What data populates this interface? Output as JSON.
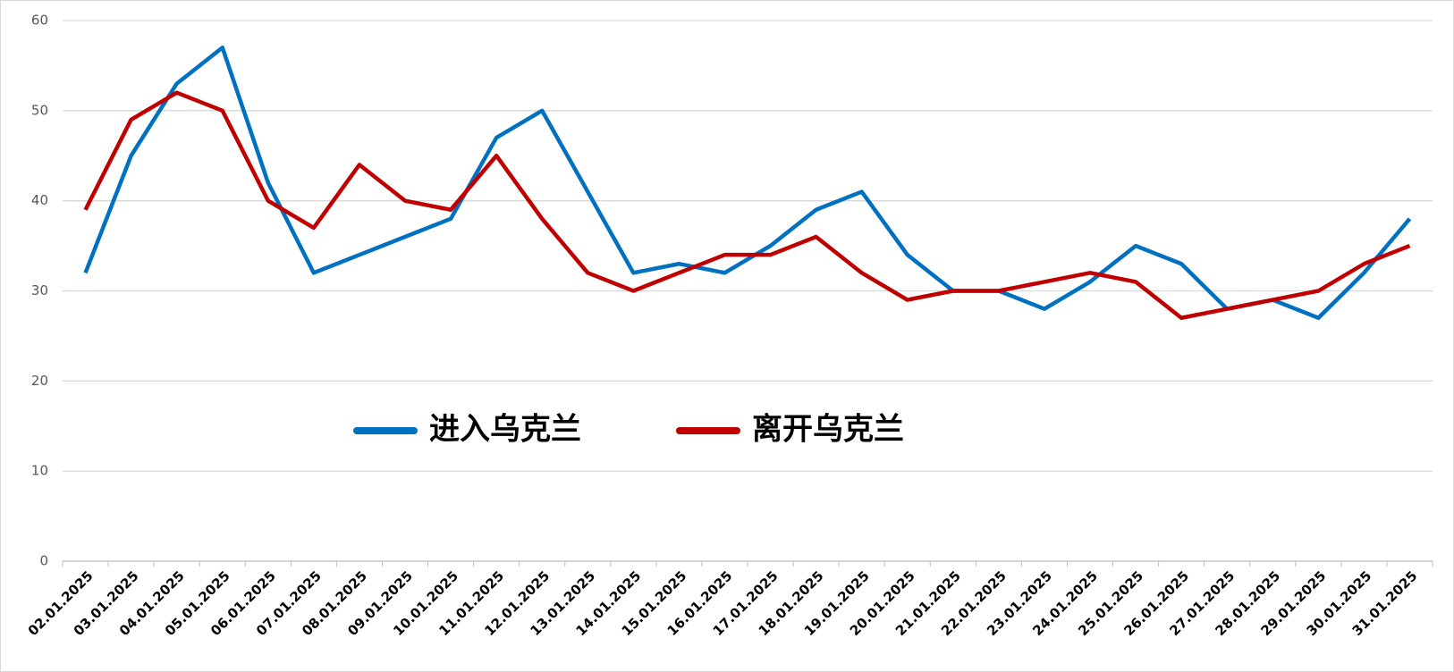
{
  "chart_data": {
    "type": "line",
    "categories": [
      "02.01.2025",
      "03.01.2025",
      "04.01.2025",
      "05.01.2025",
      "06.01.2025",
      "07.01.2025",
      "08.01.2025",
      "09.01.2025",
      "10.01.2025",
      "11.01.2025",
      "12.01.2025",
      "13.01.2025",
      "14.01.2025",
      "15.01.2025",
      "16.01.2025",
      "17.01.2025",
      "18.01.2025",
      "19.01.2025",
      "20.01.2025",
      "21.01.2025",
      "22.01.2025",
      "23.01.2025",
      "24.01.2025",
      "25.01.2025",
      "26.01.2025",
      "27.01.2025",
      "28.01.2025",
      "29.01.2025",
      "30.01.2025",
      "31.01.2025"
    ],
    "series": [
      {
        "name": "进入乌克兰",
        "color": "#0070c0",
        "values": [
          32,
          45,
          53,
          57,
          42,
          32,
          34,
          36,
          38,
          47,
          50,
          41,
          32,
          33,
          32,
          35,
          39,
          41,
          34,
          30,
          30,
          28,
          31,
          35,
          33,
          28,
          29,
          27,
          32,
          38
        ]
      },
      {
        "name": "离开乌克兰",
        "color": "#c00000",
        "values": [
          39,
          49,
          52,
          50,
          40,
          37,
          44,
          40,
          39,
          45,
          38,
          32,
          30,
          32,
          34,
          34,
          36,
          32,
          29,
          30,
          30,
          31,
          32,
          31,
          27,
          28,
          29,
          30,
          33,
          35
        ]
      }
    ],
    "ylim": [
      0,
      60
    ],
    "yticks": [
      0,
      10,
      20,
      30,
      40,
      50,
      60
    ],
    "grid": true
  }
}
